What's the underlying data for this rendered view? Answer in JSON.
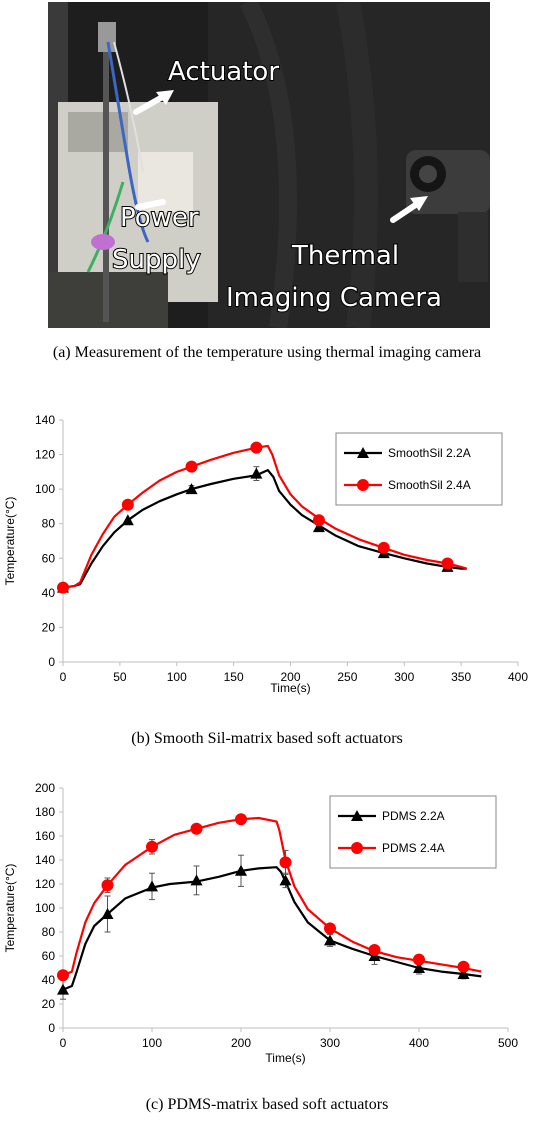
{
  "photo": {
    "labels": {
      "actuator": "Actuator",
      "power1": "Power",
      "power2": "Supply",
      "thermal1": "Thermal",
      "thermal2": "Imaging Camera"
    }
  },
  "captions": {
    "a": "(a) Measurement of the temperature using thermal imaging camera",
    "b": "(b) Smooth Sil-matrix based soft actuators",
    "c": "(c) PDMS-matrix based soft actuators"
  },
  "colors": {
    "black_series": "#000000",
    "red_series": "#ff0000",
    "axis": "#bfbfbf"
  },
  "chart_data": [
    {
      "type": "line",
      "xlabel": "Time(s)",
      "ylabel": "Temperature(°C)",
      "xlim": [
        0,
        400
      ],
      "ylim": [
        0,
        140
      ],
      "xticks": [
        0,
        50,
        100,
        150,
        200,
        250,
        300,
        350,
        400
      ],
      "yticks": [
        0,
        20,
        40,
        60,
        80,
        100,
        120,
        140
      ],
      "legend_position": "top-right",
      "grid": false,
      "series": [
        {
          "name": "SmoothSil 2.2A",
          "marker": "triangle",
          "color": "#000000",
          "curve": [
            [
              0,
              43
            ],
            [
              10,
              44
            ],
            [
              15,
              45
            ],
            [
              25,
              57
            ],
            [
              35,
              67
            ],
            [
              45,
              75
            ],
            [
              57,
              82
            ],
            [
              70,
              88
            ],
            [
              85,
              93
            ],
            [
              100,
              97
            ],
            [
              113,
              100
            ],
            [
              130,
              103
            ],
            [
              150,
              106
            ],
            [
              170,
              108
            ],
            [
              180,
              111
            ],
            [
              185,
              107
            ],
            [
              190,
              99
            ],
            [
              200,
              91
            ],
            [
              210,
              85
            ],
            [
              225,
              79
            ],
            [
              240,
              73
            ],
            [
              260,
              67
            ],
            [
              282,
              63
            ],
            [
              300,
              60
            ],
            [
              320,
              57
            ],
            [
              338,
              55
            ],
            [
              350,
              54
            ],
            [
              355,
              54
            ]
          ],
          "markers": [
            [
              0,
              43
            ],
            [
              57,
              82
            ],
            [
              113,
              100
            ],
            [
              170,
              109
            ],
            [
              225,
              78
            ],
            [
              282,
              63
            ],
            [
              338,
              55
            ]
          ],
          "errors": [
            0,
            0,
            2,
            4,
            0,
            0,
            0
          ]
        },
        {
          "name": "SmoothSil 2.4A",
          "marker": "circle",
          "color": "#ff0000",
          "curve": [
            [
              0,
              43
            ],
            [
              10,
              44
            ],
            [
              15,
              46
            ],
            [
              25,
              62
            ],
            [
              35,
              74
            ],
            [
              45,
              84
            ],
            [
              57,
              91
            ],
            [
              70,
              98
            ],
            [
              85,
              105
            ],
            [
              100,
              110
            ],
            [
              113,
              113
            ],
            [
              130,
              117
            ],
            [
              150,
              121
            ],
            [
              170,
              124
            ],
            [
              180,
              125
            ],
            [
              184,
              120
            ],
            [
              190,
              108
            ],
            [
              200,
              97
            ],
            [
              210,
              90
            ],
            [
              225,
              83
            ],
            [
              240,
              77
            ],
            [
              260,
              71
            ],
            [
              282,
              66
            ],
            [
              300,
              62
            ],
            [
              320,
              59
            ],
            [
              338,
              57
            ],
            [
              350,
              55
            ],
            [
              355,
              54
            ]
          ],
          "markers": [
            [
              0,
              43
            ],
            [
              57,
              91
            ],
            [
              113,
              113
            ],
            [
              170,
              124
            ],
            [
              225,
              82
            ],
            [
              282,
              66
            ],
            [
              338,
              57
            ]
          ],
          "errors": [
            0,
            0,
            0,
            0,
            0,
            0,
            0
          ]
        }
      ]
    },
    {
      "type": "line",
      "xlabel": "Time(s)",
      "ylabel": "Temperature(°C)",
      "xlim": [
        0,
        500
      ],
      "ylim": [
        0,
        200
      ],
      "xticks": [
        0,
        100,
        200,
        300,
        400,
        500
      ],
      "yticks": [
        0,
        20,
        40,
        60,
        80,
        100,
        120,
        140,
        160,
        180,
        200
      ],
      "legend_position": "top-right",
      "grid": false,
      "series": [
        {
          "name": "PDMS 2.2A",
          "marker": "triangle",
          "color": "#000000",
          "curve": [
            [
              0,
              32
            ],
            [
              10,
              35
            ],
            [
              15,
              46
            ],
            [
              25,
              70
            ],
            [
              35,
              85
            ],
            [
              50,
              95
            ],
            [
              70,
              108
            ],
            [
              100,
              117
            ],
            [
              120,
              120
            ],
            [
              150,
              122
            ],
            [
              175,
              126
            ],
            [
              200,
              131
            ],
            [
              220,
              133
            ],
            [
              240,
              134
            ],
            [
              245,
              130
            ],
            [
              250,
              122
            ],
            [
              260,
              105
            ],
            [
              275,
              88
            ],
            [
              300,
              73
            ],
            [
              325,
              66
            ],
            [
              350,
              60
            ],
            [
              375,
              55
            ],
            [
              400,
              50
            ],
            [
              425,
              47
            ],
            [
              450,
              45
            ],
            [
              470,
              43
            ]
          ],
          "markers": [
            [
              0,
              32
            ],
            [
              50,
              95
            ],
            [
              100,
              118
            ],
            [
              150,
              123
            ],
            [
              200,
              131
            ],
            [
              250,
              123
            ],
            [
              300,
              73
            ],
            [
              350,
              60
            ],
            [
              400,
              50
            ],
            [
              450,
              45
            ]
          ],
          "errors": [
            8,
            15,
            11,
            12,
            13,
            6,
            5,
            7,
            5,
            4
          ]
        },
        {
          "name": "PDMS 2.4A",
          "marker": "circle",
          "color": "#ff0000",
          "curve": [
            [
              0,
              44
            ],
            [
              10,
              47
            ],
            [
              15,
              62
            ],
            [
              25,
              88
            ],
            [
              35,
              104
            ],
            [
              50,
              119
            ],
            [
              70,
              136
            ],
            [
              100,
              151
            ],
            [
              125,
              161
            ],
            [
              150,
              166
            ],
            [
              175,
              171
            ],
            [
              200,
              174
            ],
            [
              220,
              175
            ],
            [
              240,
              172
            ],
            [
              243,
              165
            ],
            [
              250,
              140
            ],
            [
              260,
              118
            ],
            [
              275,
              99
            ],
            [
              300,
              83
            ],
            [
              325,
              72
            ],
            [
              350,
              64
            ],
            [
              375,
              59
            ],
            [
              400,
              56
            ],
            [
              425,
              53
            ],
            [
              450,
              50
            ],
            [
              470,
              47
            ]
          ],
          "markers": [
            [
              0,
              44
            ],
            [
              50,
              119
            ],
            [
              100,
              151
            ],
            [
              150,
              166
            ],
            [
              200,
              174
            ],
            [
              250,
              138
            ],
            [
              300,
              83
            ],
            [
              350,
              65
            ],
            [
              400,
              57
            ],
            [
              450,
              51
            ]
          ],
          "errors": [
            0,
            6,
            6,
            0,
            0,
            10,
            0,
            0,
            0,
            0
          ]
        }
      ]
    }
  ]
}
